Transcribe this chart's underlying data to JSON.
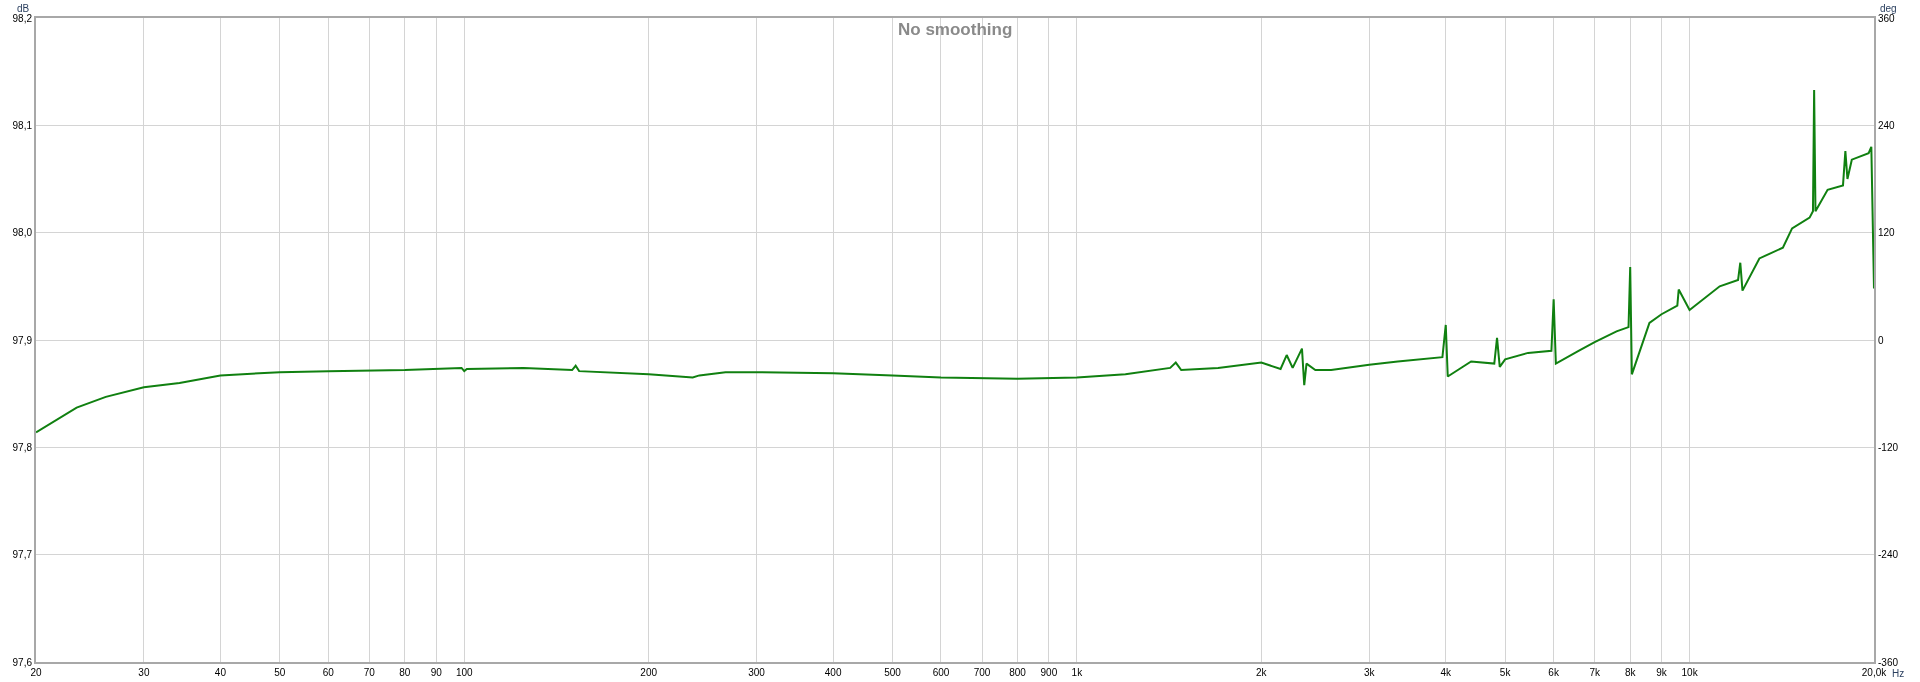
{
  "chart_data": {
    "type": "line",
    "title": "No smoothing",
    "xlabel": "Hz",
    "ylabel": "dB",
    "y2label": "deg",
    "log": "x",
    "grid": true,
    "marker": "none",
    "line_style": "solid",
    "xlim": [
      20,
      20000
    ],
    "xticks": [
      20,
      30,
      40,
      50,
      60,
      70,
      80,
      90,
      100,
      200,
      300,
      400,
      500,
      600,
      700,
      800,
      900,
      {
        "value": 1000,
        "label": "1k"
      },
      {
        "value": 2000,
        "label": "2k"
      },
      {
        "value": 3000,
        "label": "3k"
      },
      {
        "value": 4000,
        "label": "4k"
      },
      {
        "value": 5000,
        "label": "5k"
      },
      {
        "value": 6000,
        "label": "6k"
      },
      {
        "value": 7000,
        "label": "7k"
      },
      {
        "value": 8000,
        "label": "8k"
      },
      {
        "value": 9000,
        "label": "9k"
      },
      {
        "value": 10000,
        "label": "10k"
      },
      {
        "value": 20000,
        "label": "20,0k"
      }
    ],
    "ylim": [
      97.6,
      98.2
    ],
    "yticks": [
      {
        "value": 97.6,
        "label": "97,6"
      },
      {
        "value": 97.7,
        "label": "97,7"
      },
      {
        "value": 97.8,
        "label": "97,8"
      },
      {
        "value": 97.9,
        "label": "97,9"
      },
      {
        "value": 98.0,
        "label": "98,0"
      },
      {
        "value": 98.1,
        "label": "98,1"
      },
      {
        "value": 98.2,
        "label": "98,2"
      }
    ],
    "y2lim": [
      -360,
      360
    ],
    "y2ticks": [
      -360,
      -240,
      -120,
      0,
      120,
      240,
      360
    ],
    "series": [
      {
        "color": "#108010",
        "x": [
          20,
          23.3,
          26,
          30,
          34.3,
          40,
          50,
          60,
          80,
          99,
          100,
          101,
          125,
          150,
          152,
          154,
          200,
          236,
          242,
          267,
          300,
          400,
          500,
          600,
          800,
          1000,
          1200,
          1420,
          1450,
          1480,
          1700,
          2000,
          2150,
          2200,
          2250,
          2330,
          2350,
          2370,
          2450,
          2600,
          3000,
          3340,
          3950,
          4000,
          4030,
          4400,
          4800,
          4850,
          4900,
          5000,
          5450,
          5950,
          6000,
          6050,
          6600,
          7000,
          7600,
          7950,
          8000,
          8050,
          8600,
          9000,
          9550,
          9600,
          10000,
          11200,
          12000,
          12100,
          12200,
          13000,
          14200,
          14700,
          15700,
          15900,
          15970,
          16050,
          16800,
          17800,
          17960,
          18100,
          18400,
          19600,
          19800,
          20000
        ],
        "values": [
          97.814,
          97.837,
          97.847,
          97.856,
          97.86,
          97.867,
          97.87,
          97.871,
          97.872,
          97.874,
          97.871,
          97.873,
          97.874,
          97.872,
          97.876,
          97.871,
          97.868,
          97.865,
          97.867,
          97.87,
          97.87,
          97.869,
          97.867,
          97.865,
          97.864,
          97.865,
          97.868,
          97.874,
          97.879,
          97.872,
          97.874,
          97.879,
          97.873,
          97.886,
          97.874,
          97.892,
          97.858,
          97.878,
          97.872,
          97.872,
          97.877,
          97.88,
          97.884,
          97.914,
          97.866,
          97.88,
          97.878,
          97.902,
          97.875,
          97.882,
          97.888,
          97.89,
          97.938,
          97.878,
          97.89,
          97.898,
          97.908,
          97.912,
          97.968,
          97.868,
          97.916,
          97.924,
          97.932,
          97.947,
          97.928,
          97.95,
          97.956,
          97.972,
          97.946,
          97.976,
          97.986,
          98.004,
          98.014,
          98.02,
          98.133,
          98.02,
          98.04,
          98.044,
          98.076,
          98.05,
          98.068,
          98.074,
          98.08,
          97.948
        ]
      }
    ]
  }
}
